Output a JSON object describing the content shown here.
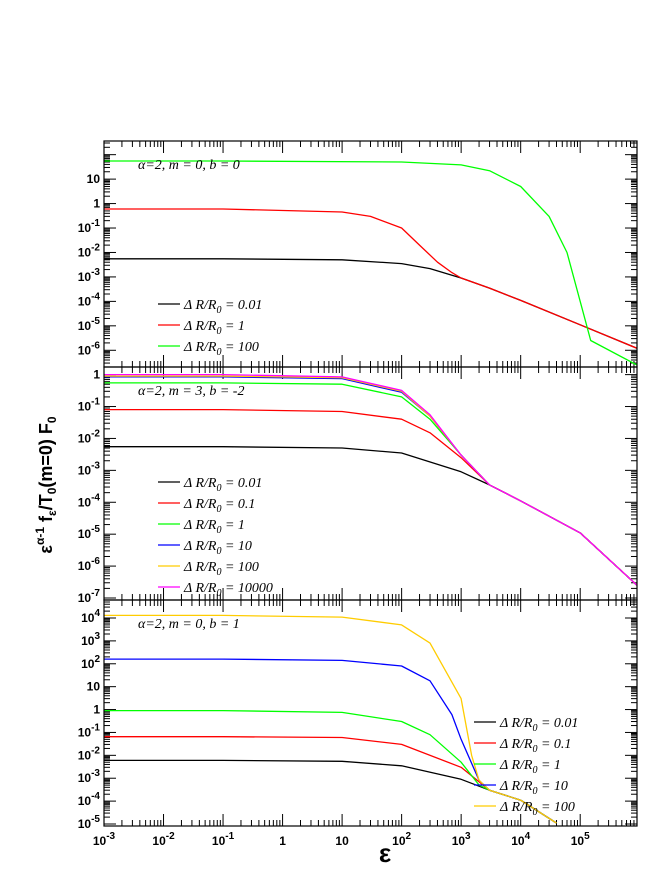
{
  "x_axis": {
    "label": "ε",
    "tick_labels": [
      "10",
      "-3",
      "10",
      "-2",
      "10",
      "-1",
      "1",
      "10",
      "10",
      "2",
      "10",
      "3",
      "10",
      "4",
      "10",
      "5"
    ]
  },
  "y_axis": {
    "label_parts": [
      "ε",
      "α-1",
      " f",
      "ε",
      "/T",
      "0",
      "(m=0) F",
      "0"
    ]
  },
  "chart_data": [
    {
      "type": "line",
      "annotation": "α=2, m = 0, b = 0",
      "x_scale": "log",
      "y_scale": "log",
      "xlim": [
        0.001,
        900000
      ],
      "ylim": [
        2.5e-07,
        300
      ],
      "y_ticks": [
        {
          "v": 10,
          "m": "10",
          "e": ""
        },
        {
          "v": 1,
          "m": "1",
          "e": ""
        },
        {
          "v": 0.1,
          "m": "10",
          "e": "-1"
        },
        {
          "v": 0.01,
          "m": "10",
          "e": "-2"
        },
        {
          "v": 0.001,
          "m": "10",
          "e": "-3"
        },
        {
          "v": 0.0001,
          "m": "10",
          "e": "-4"
        },
        {
          "v": 1e-05,
          "m": "10",
          "e": "-5"
        },
        {
          "v": 1e-06,
          "m": "10",
          "e": "-6"
        }
      ],
      "legend": {
        "position": "bottom-left",
        "entries": [
          {
            "sym": "Δ R/R",
            "sub": "0",
            "val": " = 0.01",
            "color": "#000000"
          },
          {
            "sym": "Δ R/R",
            "sub": "0",
            "val": " = 1",
            "color": "#ff0000"
          },
          {
            "sym": "Δ R/R",
            "sub": "0",
            "val": " = 100",
            "color": "#00ff00"
          }
        ]
      },
      "series": [
        {
          "color": "#000000",
          "x": [
            0.001,
            0.1,
            10,
            100,
            300,
            1000,
            3000,
            10000,
            100000,
            900000
          ],
          "y": [
            0.0055,
            0.0055,
            0.005,
            0.0035,
            0.0022,
            0.0009,
            0.00035,
            0.00011,
            1.1e-05,
            1.2e-06
          ]
        },
        {
          "color": "#ff0000",
          "x": [
            0.001,
            0.1,
            10,
            30,
            100,
            200,
            400,
            700,
            1000,
            3000,
            10000,
            100000,
            900000
          ],
          "y": [
            0.6,
            0.6,
            0.45,
            0.3,
            0.1,
            0.02,
            0.004,
            0.0015,
            0.0009,
            0.00035,
            0.00011,
            1.1e-05,
            1.2e-06
          ]
        },
        {
          "color": "#00ff00",
          "x": [
            0.001,
            0.1,
            100,
            1000,
            3000,
            10000,
            30000,
            60000,
            100000,
            150000,
            900000
          ],
          "y": [
            55,
            55,
            50,
            38,
            22,
            5,
            0.3,
            0.01,
            0.0001,
            2.5e-06,
            2.5e-07
          ]
        }
      ]
    },
    {
      "type": "line",
      "annotation": "α=2, m = 3, b = -2",
      "x_scale": "log",
      "y_scale": "log",
      "xlim": [
        0.001,
        900000
      ],
      "ylim": [
        1e-07,
        1.5
      ],
      "y_ticks": [
        {
          "v": 1,
          "m": "1",
          "e": ""
        },
        {
          "v": 0.1,
          "m": "10",
          "e": "-1"
        },
        {
          "v": 0.01,
          "m": "10",
          "e": "-2"
        },
        {
          "v": 0.001,
          "m": "10",
          "e": "-3"
        },
        {
          "v": 0.0001,
          "m": "10",
          "e": "-4"
        },
        {
          "v": 1e-05,
          "m": "10",
          "e": "-5"
        },
        {
          "v": 1e-06,
          "m": "10",
          "e": "-6"
        },
        {
          "v": 1e-07,
          "m": "10",
          "e": "-7"
        }
      ],
      "legend": {
        "position": "bottom-left",
        "entries": [
          {
            "sym": "Δ R/R",
            "sub": "0",
            "val": " = 0.01",
            "color": "#000000"
          },
          {
            "sym": "Δ R/R",
            "sub": "0",
            "val": " = 0.1",
            "color": "#ff0000"
          },
          {
            "sym": "Δ R/R",
            "sub": "0",
            "val": " = 1",
            "color": "#00ff00"
          },
          {
            "sym": "Δ R/R",
            "sub": "0",
            "val": " = 10",
            "color": "#0000ff"
          },
          {
            "sym": "Δ R/R",
            "sub": "0",
            "val": " = 100",
            "color": "#ffcc00"
          },
          {
            "sym": "Δ R/R",
            "sub": "0",
            "val": " = 10000",
            "color": "#ff00ff"
          }
        ]
      },
      "series": [
        {
          "color": "#000000",
          "x": [
            0.001,
            0.1,
            10,
            100,
            1000,
            3000,
            10000,
            100000,
            900000
          ],
          "y": [
            0.0055,
            0.0055,
            0.005,
            0.0035,
            0.0009,
            0.00035,
            0.00011,
            1.1e-05,
            2.5e-07
          ]
        },
        {
          "color": "#ff0000",
          "x": [
            0.001,
            0.1,
            10,
            100,
            300,
            1000,
            3000,
            10000,
            100000,
            900000
          ],
          "y": [
            0.08,
            0.08,
            0.07,
            0.04,
            0.015,
            0.0025,
            0.00035,
            0.00011,
            1.1e-05,
            2.5e-07
          ]
        },
        {
          "color": "#00ff00",
          "x": [
            0.001,
            0.1,
            10,
            100,
            300,
            1000,
            3000,
            10000,
            100000,
            900000
          ],
          "y": [
            0.55,
            0.55,
            0.5,
            0.2,
            0.04,
            0.003,
            0.00035,
            0.00011,
            1.1e-05,
            2.5e-07
          ]
        },
        {
          "color": "#0000ff",
          "x": [
            0.001,
            0.1,
            10,
            100,
            300,
            1000,
            3000,
            10000,
            100000,
            900000
          ],
          "y": [
            0.85,
            0.85,
            0.75,
            0.28,
            0.05,
            0.003,
            0.00035,
            0.00011,
            1.1e-05,
            2.5e-07
          ]
        },
        {
          "color": "#ffcc00",
          "x": [
            0.001,
            0.1,
            10,
            100,
            300,
            1000,
            3000,
            10000,
            100000,
            900000
          ],
          "y": [
            0.9,
            0.9,
            0.8,
            0.3,
            0.05,
            0.003,
            0.00035,
            0.00011,
            1.1e-05,
            2.5e-07
          ]
        },
        {
          "color": "#ff00ff",
          "x": [
            0.001,
            0.1,
            10,
            100,
            300,
            1000,
            3000,
            10000,
            100000,
            900000
          ],
          "y": [
            1.0,
            1.0,
            0.85,
            0.32,
            0.055,
            0.003,
            0.00035,
            0.00011,
            1.1e-05,
            2.5e-07
          ]
        }
      ]
    },
    {
      "type": "line",
      "annotation": "α=2, m = 0, b = 1",
      "x_scale": "log",
      "y_scale": "log",
      "xlim": [
        0.001,
        900000
      ],
      "ylim": [
        1e-05,
        50000
      ],
      "y_ticks": [
        {
          "v": 10000,
          "m": "10",
          "e": "4"
        },
        {
          "v": 1000,
          "m": "10",
          "e": "3"
        },
        {
          "v": 100,
          "m": "10",
          "e": "2"
        },
        {
          "v": 10,
          "m": "10",
          "e": ""
        },
        {
          "v": 1,
          "m": "1",
          "e": ""
        },
        {
          "v": 0.1,
          "m": "10",
          "e": "-1"
        },
        {
          "v": 0.01,
          "m": "10",
          "e": "-2"
        },
        {
          "v": 0.001,
          "m": "10",
          "e": "-3"
        },
        {
          "v": 0.0001,
          "m": "10",
          "e": "-4"
        },
        {
          "v": 1e-05,
          "m": "10",
          "e": "-5"
        }
      ],
      "legend": {
        "position": "bottom-right",
        "entries": [
          {
            "sym": "Δ R/R",
            "sub": "0",
            "val": " = 0.01",
            "color": "#000000"
          },
          {
            "sym": "Δ R/R",
            "sub": "0",
            "val": " = 0.1",
            "color": "#ff0000"
          },
          {
            "sym": "Δ R/R",
            "sub": "0",
            "val": " = 1",
            "color": "#00ff00"
          },
          {
            "sym": "Δ R/R",
            "sub": "0",
            "val": " = 10",
            "color": "#0000ff"
          },
          {
            "sym": "Δ R/R",
            "sub": "0",
            "val": " = 100",
            "color": "#ffcc00"
          }
        ]
      },
      "series": [
        {
          "color": "#000000",
          "x": [
            0.001,
            0.1,
            10,
            100,
            1000,
            3000,
            10000,
            40000
          ],
          "y": [
            0.006,
            0.006,
            0.0055,
            0.0035,
            0.0009,
            0.0003,
            0.00011,
            1.1e-05
          ]
        },
        {
          "color": "#ff0000",
          "x": [
            0.001,
            0.1,
            10,
            100,
            1000,
            3000,
            10000,
            40000
          ],
          "y": [
            0.065,
            0.065,
            0.06,
            0.03,
            0.003,
            0.0003,
            0.00011,
            1.1e-05
          ]
        },
        {
          "color": "#00ff00",
          "x": [
            0.001,
            0.1,
            10,
            100,
            300,
            1000,
            2000,
            3000,
            10000,
            40000
          ],
          "y": [
            0.9,
            0.9,
            0.75,
            0.3,
            0.08,
            0.005,
            0.0005,
            0.0003,
            0.00011,
            1.1e-05
          ]
        },
        {
          "color": "#0000ff",
          "x": [
            0.001,
            0.1,
            10,
            100,
            300,
            700,
            1000,
            2000,
            3000,
            10000,
            40000
          ],
          "y": [
            160,
            160,
            140,
            80,
            18,
            0.6,
            0.05,
            0.0008,
            0.0003,
            0.00011,
            1.1e-05
          ]
        },
        {
          "color": "#ffcc00",
          "x": [
            0.001,
            0.1,
            10,
            100,
            300,
            1000,
            1500,
            2000,
            3000,
            10000,
            40000
          ],
          "y": [
            13000,
            13000,
            11000,
            5000,
            800,
            3,
            0.01,
            0.0008,
            0.0003,
            0.00011,
            1.1e-05
          ]
        }
      ]
    }
  ]
}
